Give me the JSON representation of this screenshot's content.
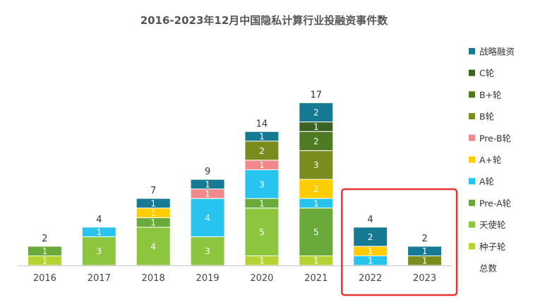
{
  "chart_data": {
    "type": "bar",
    "stacked": true,
    "title": "2016-2023年12月中国隐私计算行业投融资事件数",
    "categories": [
      "2016",
      "2017",
      "2018",
      "2019",
      "2020",
      "2021",
      "2022",
      "2023"
    ],
    "series": [
      {
        "name": "种子轮",
        "color": "#b5d334",
        "values": [
          1,
          0,
          0,
          0,
          1,
          1,
          0,
          0
        ]
      },
      {
        "name": "天使轮",
        "color": "#8cc63f",
        "values": [
          0,
          3,
          4,
          3,
          5,
          0,
          0,
          0
        ]
      },
      {
        "name": "Pre-A轮",
        "color": "#6aaa3a",
        "values": [
          1,
          0,
          1,
          0,
          1,
          5,
          0,
          0
        ]
      },
      {
        "name": "A轮",
        "color": "#27c4f0",
        "values": [
          0,
          1,
          0,
          4,
          3,
          1,
          1,
          0
        ]
      },
      {
        "name": "A+轮",
        "color": "#ffcc00",
        "values": [
          0,
          0,
          1,
          0,
          0,
          2,
          1,
          0
        ]
      },
      {
        "name": "Pre-B轮",
        "color": "#f08a8a",
        "values": [
          0,
          0,
          0,
          1,
          1,
          0,
          0,
          0
        ]
      },
      {
        "name": "B轮",
        "color": "#7a8c1e",
        "values": [
          0,
          0,
          0,
          0,
          2,
          3,
          0,
          1
        ]
      },
      {
        "name": "B+轮",
        "color": "#4e7a23",
        "values": [
          0,
          0,
          0,
          0,
          0,
          2,
          0,
          0
        ]
      },
      {
        "name": "C轮",
        "color": "#3a6324",
        "values": [
          0,
          0,
          0,
          0,
          0,
          1,
          0,
          0
        ]
      },
      {
        "name": "战略融资",
        "color": "#177a94",
        "values": [
          0,
          0,
          1,
          1,
          1,
          2,
          2,
          1
        ]
      }
    ],
    "totals_name": "总数",
    "totals": [
      2,
      4,
      7,
      9,
      14,
      17,
      4,
      2
    ],
    "ylim": [
      0,
      17
    ],
    "legend_position": "right",
    "grid": false,
    "highlight": {
      "categories": [
        "2022",
        "2023"
      ],
      "color": "#e63232"
    }
  }
}
